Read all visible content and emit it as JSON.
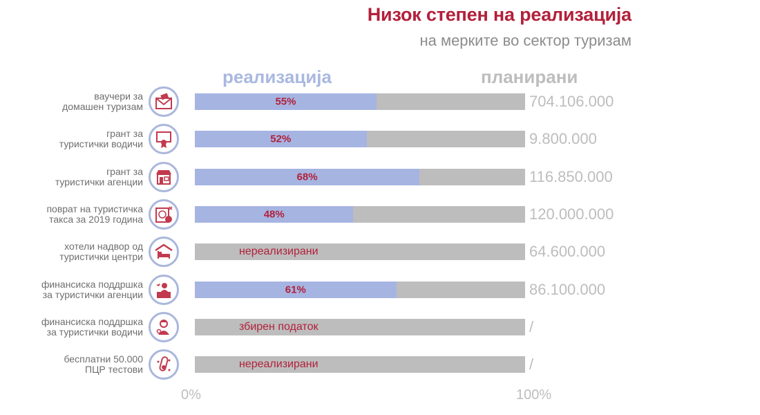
{
  "chart_data": {
    "type": "bar",
    "title": "Низок степен на реализација",
    "subtitle": "на мерките во сектор туризам",
    "series_labels": {
      "realization": "реализација",
      "planned": "планирани"
    },
    "axis": {
      "min_label": "0%",
      "max_label": "100%",
      "range": [
        0,
        100
      ]
    },
    "categories": [
      "ваучери за\nдомашен туризам",
      "грант за\nтуристички водичи",
      "грант за\nтуристички агенции",
      "поврат на туристичка\nтакса за 2019 година",
      "хотели надвор од\nтуристички центри",
      "финансиска поддршка\nза туристички агенции",
      "финансиска поддршка\nза туристички водичи",
      "бесплатни 50.000\nПЦР тестови"
    ],
    "rows": [
      {
        "category": "ваучери за\nдомашен туризам",
        "realization_pct": 55,
        "bar_text": "55%",
        "planned": "704.106.000",
        "icon": "voucher-envelope-icon"
      },
      {
        "category": "грант за\nтуристички водичи",
        "realization_pct": 52,
        "bar_text": "52%",
        "planned": "9.800.000",
        "icon": "certificate-grant-icon"
      },
      {
        "category": "грант за\nтуристички агенции",
        "realization_pct": 68,
        "bar_text": "68%",
        "planned": "116.850.000",
        "icon": "agency-shop-icon"
      },
      {
        "category": "поврат на туристичка\nтакса за 2019 година",
        "realization_pct": 48,
        "bar_text": "48%",
        "planned": "120.000.000",
        "icon": "tax-refund-globe-icon"
      },
      {
        "category": "хотели надвор од\nтуристички центри",
        "realization_pct": 0,
        "bar_text": "нереализирани",
        "planned": "64.600.000",
        "icon": "hotel-bed-icon"
      },
      {
        "category": "финансиска поддршка\nза туристички агенции",
        "realization_pct": 61,
        "bar_text": "61%",
        "planned": "86.100.000",
        "icon": "travel-agent-desk-icon"
      },
      {
        "category": "финансиска поддршка\nза туристички водичи",
        "realization_pct": 0,
        "bar_text": "збирен податок",
        "planned": "/",
        "icon": "tour-guide-icon"
      },
      {
        "category": "бесплатни 50.000\nПЦР тестови",
        "realization_pct": 0,
        "bar_text": "нереализирани",
        "planned": "/",
        "icon": "pcr-test-tube-icon"
      }
    ],
    "colors": {
      "realization": "#a6b4e2",
      "planned": "#bdbdbd",
      "title": "#b2203a",
      "bar_text": "#b2203a",
      "icon": "#c23a4e",
      "icon_ring": "#aab7dc"
    }
  }
}
